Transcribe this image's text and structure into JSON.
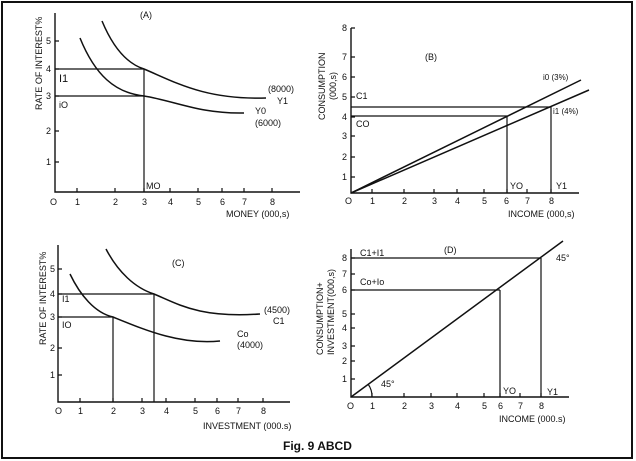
{
  "caption": "Fig. 9 ABCD",
  "panels": {
    "A": {
      "title": "(A)",
      "ylabel": "RATE OF INTEREST%",
      "xlabel": "MONEY (000,s)",
      "yticks": [
        "1",
        "2",
        "3",
        "4",
        "5"
      ],
      "xticks": [
        "O",
        "1",
        "2",
        "3",
        "4",
        "5",
        "6",
        "7",
        "8"
      ],
      "labels": {
        "i1": "I1",
        "i0": "iO",
        "m0": "MO",
        "y1_value": "(8000)",
        "y1": "Y1",
        "y0": "Y0",
        "y0_value": "(6000)"
      }
    },
    "B": {
      "title": "(B)",
      "ylabel": "CONSUMPTION",
      "ylabel2": "(000,s)",
      "xlabel": "INCOME (000,s)",
      "yticks": [
        "1",
        "2",
        "3",
        "4",
        "5",
        "6",
        "7",
        "8"
      ],
      "xticks": [
        "O",
        "1",
        "2",
        "3",
        "4",
        "5",
        "6",
        "7",
        "8"
      ],
      "labels": {
        "c1": "C1",
        "c0": "CO",
        "y0": "YO",
        "y1": "Y1",
        "i0_line": "i0 (3%)",
        "i1_line": "i1 (4%)"
      }
    },
    "C": {
      "title": "(C)",
      "ylabel": "RATE OF INTEREST%",
      "xlabel": "INVESTMENT (000.s)",
      "yticks": [
        "1",
        "2",
        "3",
        "4",
        "5"
      ],
      "xticks": [
        "O",
        "1",
        "2",
        "3",
        "4",
        "5",
        "6",
        "7",
        "8"
      ],
      "labels": {
        "i1": "I1",
        "i0": "IO",
        "c1_value": "(4500)",
        "c1": "C1",
        "c0": "Co",
        "c0_value": "(4000)"
      }
    },
    "D": {
      "title": "(D)",
      "ylabel": "CONSUMPTION+",
      "ylabel2": "INVESTMENT(000,s)",
      "xlabel": "INCOME (000.s)",
      "yticks": [
        "1",
        "2",
        "3",
        "4",
        "5",
        "6",
        "7",
        "8"
      ],
      "xticks": [
        "O",
        "1",
        "2",
        "3",
        "4",
        "5",
        "6",
        "7",
        "8"
      ],
      "labels": {
        "c1i1": "C1+I1",
        "c0i0": "Co+Io",
        "angle_top": "45°",
        "angle_bottom": "45°",
        "y0": "YO",
        "y1": "Y1"
      }
    }
  }
}
